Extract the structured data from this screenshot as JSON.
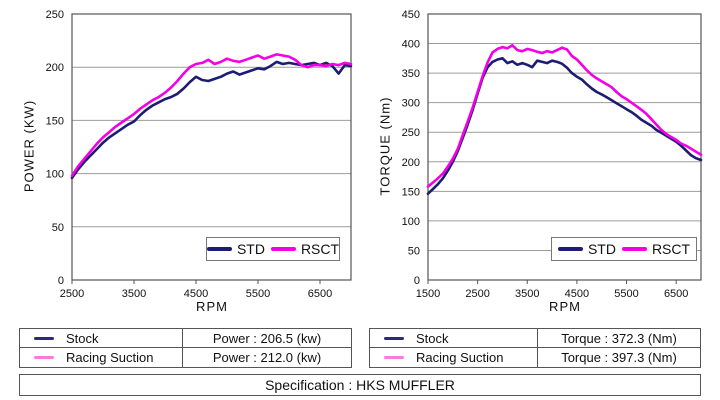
{
  "page": {
    "background": "#ffffff",
    "grid_color": "#9b9b9b",
    "axis_color": "#555555"
  },
  "chart_data": [
    {
      "type": "line",
      "title": "",
      "xlabel": "RPM",
      "ylabel": "POWER (KW)",
      "xlim": [
        2500,
        7000
      ],
      "ylim": [
        0,
        250
      ],
      "x_ticks": [
        2500,
        3500,
        4500,
        5500,
        6500
      ],
      "y_ticks": [
        0,
        50,
        100,
        150,
        200,
        250
      ],
      "grid": "horizontal",
      "legend_position": "lower right",
      "x_start": 2500,
      "x_step": 100,
      "series": [
        {
          "name": "STD",
          "color": "#1c1c72",
          "values": [
            96,
            104,
            111,
            117,
            123,
            129,
            134,
            138,
            142,
            146,
            149,
            155,
            160,
            164,
            167,
            170,
            172,
            175,
            180,
            186,
            191,
            188,
            187,
            189,
            191,
            194,
            196,
            193,
            195,
            197,
            199,
            198,
            201,
            205,
            203,
            204,
            203,
            202,
            203,
            204,
            202,
            204,
            201,
            194,
            202,
            201
          ]
        },
        {
          "name": "RSCT",
          "color": "#f400e4",
          "values": [
            98,
            107,
            114,
            121,
            128,
            134,
            139,
            144,
            148,
            152,
            156,
            161,
            165,
            169,
            172,
            176,
            181,
            187,
            194,
            200,
            203,
            204,
            207,
            203,
            205,
            208,
            206,
            205,
            207,
            209,
            211,
            208,
            210,
            212,
            211,
            210,
            207,
            202,
            200,
            202,
            202,
            201,
            203,
            202,
            204,
            203
          ]
        }
      ]
    },
    {
      "type": "line",
      "title": "",
      "xlabel": "RPM",
      "ylabel": "TORQUE (Nm)",
      "xlim": [
        1500,
        7000
      ],
      "ylim": [
        0,
        450
      ],
      "x_ticks": [
        1500,
        2500,
        3500,
        4500,
        5500,
        6500
      ],
      "y_ticks": [
        0,
        50,
        100,
        150,
        200,
        250,
        300,
        350,
        400,
        450
      ],
      "grid": "horizontal",
      "legend_position": "lower right",
      "x_start": 1500,
      "x_step": 100,
      "series": [
        {
          "name": "STD",
          "color": "#1c1c72",
          "values": [
            146,
            154,
            162,
            172,
            185,
            200,
            218,
            240,
            263,
            288,
            315,
            342,
            360,
            369,
            373,
            375,
            367,
            370,
            364,
            367,
            364,
            360,
            371,
            369,
            367,
            371,
            369,
            366,
            359,
            350,
            344,
            339,
            331,
            324,
            318,
            314,
            309,
            304,
            299,
            294,
            289,
            284,
            278,
            271,
            266,
            261,
            254,
            249,
            244,
            239,
            234,
            227,
            219,
            211,
            206,
            203
          ]
        },
        {
          "name": "RSCT",
          "color": "#f400e4",
          "values": [
            158,
            165,
            172,
            180,
            192,
            205,
            222,
            245,
            268,
            292,
            318,
            345,
            368,
            385,
            391,
            394,
            392,
            397,
            389,
            387,
            391,
            389,
            386,
            384,
            387,
            385,
            389,
            393,
            390,
            379,
            373,
            364,
            355,
            347,
            341,
            336,
            331,
            326,
            318,
            311,
            306,
            300,
            294,
            288,
            281,
            272,
            263,
            254,
            247,
            242,
            237,
            231,
            227,
            222,
            217,
            212
          ]
        }
      ]
    }
  ],
  "tables": {
    "power": {
      "rows": [
        {
          "swatch_color": "#2a2a85",
          "label": "Stock",
          "value": "Power : 206.5 (kw)"
        },
        {
          "swatch_color": "#ff7add",
          "label": "Racing Suction",
          "value": "Power : 212.0 (kw)"
        }
      ]
    },
    "torque": {
      "rows": [
        {
          "swatch_color": "#2a2a85",
          "label": "Stock",
          "value": "Torque : 372.3 (Nm)"
        },
        {
          "swatch_color": "#ff7add",
          "label": "Racing Suction",
          "value": "Torque : 397.3 (Nm)"
        }
      ]
    }
  },
  "spec_bar": {
    "text": "Specification : HKS MUFFLER"
  }
}
